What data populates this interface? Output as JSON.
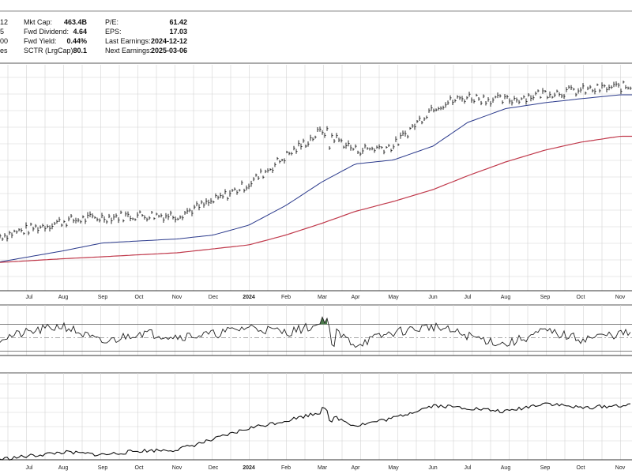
{
  "header": {
    "left_fragments": [
      "12",
      "5",
      "00",
      "es"
    ],
    "stats": [
      {
        "label": "Mkt Cap:",
        "value": "463.4B"
      },
      {
        "label": "Fwd Dividend:",
        "value": "4.64"
      },
      {
        "label": "Fwd Yield:",
        "value": "0.44%"
      },
      {
        "label": "SCTR (LrgCap):",
        "value": "80.1"
      },
      {
        "label": "P/E:",
        "value": "61.42"
      },
      {
        "label": "EPS:",
        "value": "17.03"
      },
      {
        "label": "Last Earnings:",
        "value": "2024-12-12"
      },
      {
        "label": "Next Earnings:",
        "value": "2025-03-06"
      }
    ]
  },
  "axis": {
    "months": [
      "Jul",
      "Aug",
      "Sep",
      "Oct",
      "Nov",
      "Dec",
      "2024",
      "Feb",
      "Mar",
      "Apr",
      "May",
      "Jun",
      "Jul",
      "Aug",
      "Sep",
      "Oct",
      "Nov"
    ]
  },
  "colors": {
    "price": "#111111",
    "ma_short": "#2b3a8c",
    "ma_long": "#c0394b",
    "rsi_fill": "#4a7a4a",
    "grid": "#d4d4d4"
  },
  "chart_data": [
    {
      "type": "line",
      "panel": "price",
      "x": [
        "Jul",
        "Aug",
        "Sep",
        "Oct",
        "Nov",
        "Dec",
        "2024",
        "Feb",
        "Mar",
        "Apr",
        "May",
        "Jun",
        "Jul",
        "Aug",
        "Sep",
        "Oct",
        "Nov"
      ],
      "series": [
        {
          "values": [
            20,
            24,
            26,
            27,
            27,
            34,
            43,
            57,
            70,
            60,
            62,
            82,
            87,
            85,
            89,
            90,
            92
          ]
        },
        {
          "values": [
            6,
            9,
            13,
            14,
            15,
            17,
            22,
            32,
            44,
            53,
            55,
            62,
            74,
            81,
            84,
            86,
            88
          ]
        },
        {
          "values": [
            4,
            5,
            6,
            7,
            8,
            10,
            12,
            17,
            23,
            29,
            34,
            40,
            47,
            54,
            60,
            64,
            67
          ]
        }
      ]
    },
    {
      "type": "line",
      "panel": "rsi",
      "x": [
        "Jul",
        "Aug",
        "Sep",
        "Oct",
        "Nov",
        "Dec",
        "2024",
        "Feb",
        "Mar",
        "Apr",
        "May",
        "Jun",
        "Jul",
        "Aug",
        "Sep",
        "Oct",
        "Nov"
      ],
      "series": [
        {
          "values": [
            58,
            68,
            42,
            58,
            52,
            55,
            66,
            58,
            70,
            40,
            58,
            67,
            53,
            40,
            60,
            48,
            56
          ]
        }
      ]
    },
    {
      "type": "line",
      "panel": "lower",
      "x": [
        "Jul",
        "Aug",
        "Sep",
        "Oct",
        "Nov",
        "Dec",
        "2024",
        "Feb",
        "Mar",
        "Apr",
        "May",
        "Jun",
        "Jul",
        "Aug",
        "Sep",
        "Oct",
        "Nov"
      ],
      "series": [
        {
          "values": [
            3,
            6,
            4,
            7,
            8,
            16,
            25,
            31,
            38,
            27,
            33,
            43,
            41,
            38,
            45,
            41,
            43
          ]
        }
      ]
    }
  ]
}
